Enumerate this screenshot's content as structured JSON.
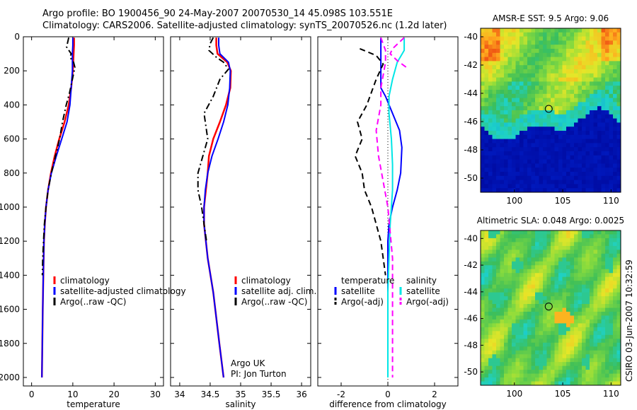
{
  "title_line1": "Argo profile: BO 1900456_90 24-May-2007 20070530_14 45.098S 103.551E",
  "title_line2": "Climatology: CARS2006. Satellite-adjusted climatology: synTS_20070526.nc (1.2d later)",
  "side_note": "CSIRO 03-Jun-2007 10:32:59",
  "colors": {
    "red": "#ff0000",
    "blue": "#0000ff",
    "black": "#000000",
    "magenta": "#ff00ff",
    "cyan": "#00e6e6"
  },
  "chart_data": [
    {
      "type": "line",
      "id": "temperature",
      "xlabel": "temperature",
      "ylabel": "",
      "xlim": [
        -2,
        32
      ],
      "ylim": [
        2050,
        0
      ],
      "xticks": [
        0,
        10,
        20,
        30
      ],
      "yticks": [
        0,
        200,
        400,
        600,
        800,
        1000,
        1200,
        1400,
        1600,
        1800,
        2000
      ],
      "legend": {
        "placement": "lower-right",
        "entries": [
          {
            "label": "climatology",
            "color": "red",
            "style": "solid"
          },
          {
            "label": "satellite-adjusted climatology",
            "color": "blue",
            "style": "solid"
          },
          {
            "label": "Argo(..raw -QC)",
            "color": "black",
            "style": "dashdot"
          }
        ]
      },
      "series": [
        {
          "name": "climatology",
          "color": "red",
          "style": "solid",
          "width": 2.5,
          "x": [
            10.3,
            10.3,
            10.2,
            10.0,
            9.6,
            9.0,
            8.0,
            6.7,
            5.6,
            4.7,
            4.0,
            3.5,
            3.2,
            3.0,
            2.85,
            2.7,
            2.6,
            2.5
          ],
          "y": [
            5,
            50,
            100,
            200,
            300,
            400,
            500,
            600,
            700,
            800,
            900,
            1000,
            1100,
            1200,
            1400,
            1600,
            1800,
            2000
          ]
        },
        {
          "name": "satellite-adjusted climatology",
          "color": "blue",
          "style": "solid",
          "width": 2,
          "x": [
            10.0,
            10.0,
            9.9,
            9.9,
            9.6,
            9.3,
            8.6,
            7.3,
            6.0,
            4.8,
            4.0,
            3.5,
            3.2,
            3.0,
            2.85,
            2.7,
            2.6,
            2.5
          ],
          "y": [
            5,
            50,
            100,
            200,
            300,
            400,
            500,
            600,
            700,
            800,
            900,
            1000,
            1100,
            1200,
            1400,
            1600,
            1800,
            2000
          ]
        },
        {
          "name": "Argo(..raw -QC)",
          "color": "black",
          "style": "dashdot",
          "width": 2,
          "x": [
            9.0,
            8.5,
            9.6,
            9.3,
            10.2,
            10.5,
            9.9,
            9.2,
            8.4,
            7.5,
            6.8,
            5.8,
            4.8,
            4.0,
            3.5,
            3.1,
            2.9,
            2.7,
            2.6
          ],
          "y": [
            5,
            60,
            100,
            120,
            150,
            180,
            250,
            330,
            400,
            500,
            600,
            700,
            800,
            900,
            1000,
            1100,
            1200,
            1300,
            1400
          ]
        }
      ],
      "annotations": []
    },
    {
      "type": "line",
      "id": "salinity",
      "xlabel": "salinity",
      "ylabel": "",
      "xlim": [
        33.85,
        36.15
      ],
      "ylim": [
        2050,
        0
      ],
      "xticks": [
        34,
        34.5,
        35,
        35.5,
        36
      ],
      "yticks": [],
      "legend": {
        "placement": "lower-right",
        "entries": [
          {
            "label": "climatology",
            "color": "red",
            "style": "solid"
          },
          {
            "label": "satellite adj. clim.",
            "color": "blue",
            "style": "solid"
          },
          {
            "label": "Argo(..raw -QC)",
            "color": "black",
            "style": "dashdot"
          }
        ]
      },
      "series": [
        {
          "name": "climatology",
          "color": "red",
          "style": "solid",
          "width": 2.5,
          "x": [
            34.6,
            34.6,
            34.62,
            34.78,
            34.84,
            34.83,
            34.76,
            34.66,
            34.55,
            34.48,
            34.46,
            34.43,
            34.4,
            34.4,
            34.46,
            34.55,
            34.65,
            34.72
          ],
          "y": [
            5,
            50,
            100,
            150,
            200,
            300,
            400,
            500,
            600,
            700,
            800,
            900,
            1000,
            1100,
            1300,
            1500,
            1800,
            2000
          ]
        },
        {
          "name": "satellite adj. clim.",
          "color": "blue",
          "style": "solid",
          "width": 2,
          "x": [
            34.64,
            34.64,
            34.66,
            34.8,
            34.83,
            34.82,
            34.79,
            34.72,
            34.63,
            34.53,
            34.46,
            34.42,
            34.4,
            34.4,
            34.46,
            34.55,
            34.65,
            34.72
          ],
          "y": [
            5,
            50,
            100,
            150,
            200,
            300,
            400,
            500,
            600,
            700,
            800,
            900,
            1000,
            1100,
            1300,
            1500,
            1800,
            2000
          ]
        },
        {
          "name": "Argo(..raw -QC)",
          "color": "black",
          "style": "dashdot",
          "width": 2,
          "x": [
            34.55,
            34.5,
            34.48,
            34.6,
            34.72,
            34.8,
            34.66,
            34.55,
            34.4,
            34.46,
            34.38,
            34.3,
            34.3,
            34.36,
            34.4,
            34.44
          ],
          "y": [
            5,
            40,
            80,
            120,
            150,
            190,
            250,
            350,
            450,
            600,
            700,
            800,
            900,
            1000,
            1100,
            1200
          ]
        }
      ],
      "annotations": [
        "Argo UK",
        "PI: Jon Turton"
      ]
    },
    {
      "type": "line",
      "id": "difference",
      "xlabel": "difference from climatology",
      "ylabel": "",
      "xlim": [
        -3.0,
        3.0
      ],
      "ylim": [
        2050,
        0
      ],
      "xticks": [
        -2,
        0,
        2
      ],
      "yticks": [],
      "legend": {
        "placement": "lower",
        "entries": [
          {
            "label": "temperature",
            "color": "none",
            "style": "none"
          },
          {
            "label": "satellite",
            "color": "blue",
            "style": "solid"
          },
          {
            "label": "Argo(-adj)",
            "color": "black",
            "style": "dashed"
          },
          {
            "label": "salinity",
            "color": "none",
            "style": "none"
          },
          {
            "label": "satellite",
            "color": "cyan",
            "style": "solid"
          },
          {
            "label": "Argo(-adj)",
            "color": "magenta",
            "style": "dashed"
          }
        ]
      },
      "series": [
        {
          "name": "temperature satellite",
          "color": "blue",
          "style": "solid",
          "width": 2,
          "x": [
            -0.3,
            -0.3,
            -0.3,
            -0.3,
            -0.1,
            0.2,
            0.5,
            0.6,
            0.55,
            0.4,
            0.2,
            0.05,
            0,
            0,
            0,
            0
          ],
          "y": [
            5,
            100,
            200,
            300,
            350,
            450,
            550,
            650,
            800,
            900,
            1000,
            1100,
            1200,
            1400,
            1700,
            2000
          ]
        },
        {
          "name": "temperature Argo(-adj)",
          "color": "black",
          "style": "dashed",
          "width": 2,
          "x": [
            -1.2,
            -0.5,
            -0.2,
            -0.5,
            -0.9,
            -1.3,
            -1.1,
            -1.4,
            -1.1,
            -1.0,
            -0.7,
            -0.5,
            -0.3,
            -0.1
          ],
          "y": [
            70,
            110,
            160,
            250,
            400,
            500,
            600,
            700,
            800,
            900,
            1000,
            1100,
            1200,
            1400
          ]
        },
        {
          "name": "salinity satellite",
          "color": "cyan",
          "style": "solid",
          "width": 2,
          "x": [
            0.7,
            0.7,
            0.4,
            0.2,
            0.05,
            0.05,
            0.15,
            0.2,
            0.2,
            0.1,
            0.05,
            0,
            0,
            0
          ],
          "y": [
            5,
            80,
            150,
            250,
            350,
            450,
            600,
            750,
            900,
            1100,
            1300,
            1500,
            1800,
            2000
          ]
        },
        {
          "name": "salinity Argo(-adj)",
          "color": "magenta",
          "style": "dashed",
          "width": 2,
          "x": [
            -0.3,
            -0.1,
            -0.1,
            -0.3,
            -0.3,
            -0.5,
            -0.4,
            -0.2,
            0,
            0.1,
            0.2,
            0.2,
            0.2,
            0.2
          ],
          "y": [
            5,
            80,
            150,
            300,
            400,
            550,
            700,
            850,
            1000,
            1150,
            1300,
            1500,
            1800,
            2000
          ]
        },
        {
          "name": "salinity Argo(-adj) surface",
          "color": "magenta",
          "style": "dashed",
          "width": 2,
          "x": [
            0.7,
            0.2,
            0.1,
            0.4,
            0.8
          ],
          "y": [
            5,
            70,
            100,
            140,
            180
          ]
        }
      ],
      "annotations": []
    },
    {
      "type": "heatmap",
      "id": "sst_map",
      "title": "AMSR-E SST: 9.5 Argo: 9.06",
      "xlim": [
        96.5,
        111
      ],
      "ylim": [
        -51,
        -39.4
      ],
      "xticks": [
        100,
        105,
        110
      ],
      "yticks": [
        -40,
        -42,
        -44,
        -46,
        -48,
        -50
      ],
      "marker": {
        "lon": 103.551,
        "lat": -45.098
      }
    },
    {
      "type": "heatmap",
      "id": "sla_map",
      "title": "Altimetric SLA: 0.048 Argo: 0.0025",
      "xlim": [
        96.5,
        111
      ],
      "ylim": [
        -51,
        -39.4
      ],
      "xticks": [
        100,
        105,
        110
      ],
      "yticks": [
        -40,
        -42,
        -44,
        -46,
        -48,
        -50
      ],
      "marker": {
        "lon": 103.551,
        "lat": -45.098
      }
    }
  ]
}
